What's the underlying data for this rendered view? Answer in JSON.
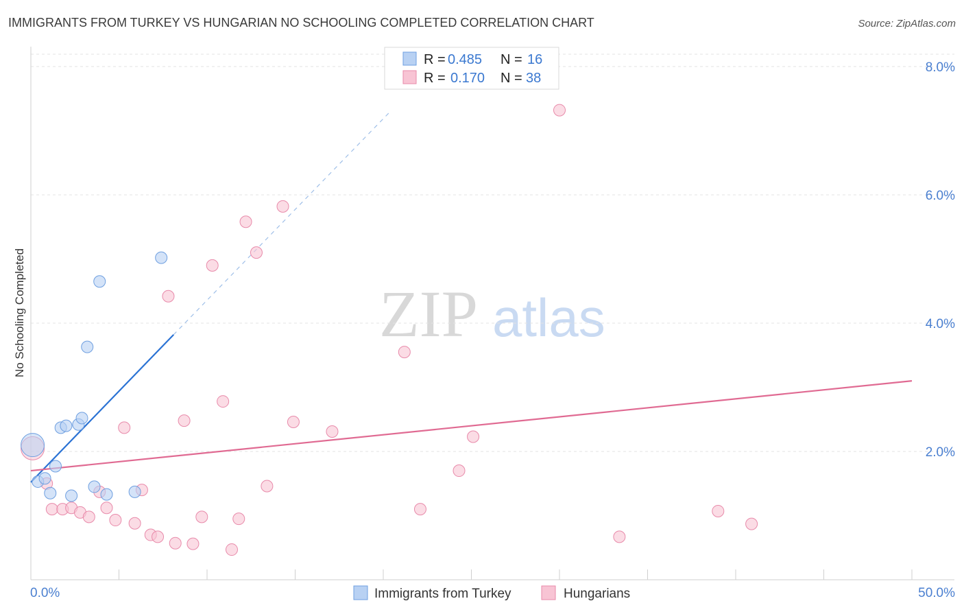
{
  "chart_data": {
    "type": "scatter",
    "title": "IMMIGRANTS FROM TURKEY VS HUNGARIAN NO SCHOOLING COMPLETED CORRELATION CHART",
    "source": "Source: ZipAtlas.com",
    "ylabel": "No Schooling Completed",
    "xlim": [
      0,
      50
    ],
    "ylim": [
      0,
      8.0
    ],
    "y_ticks": [
      {
        "value": 2.0,
        "label": "2.0%"
      },
      {
        "value": 4.0,
        "label": "4.0%"
      },
      {
        "value": 6.0,
        "label": "6.0%"
      },
      {
        "value": 8.0,
        "label": "8.0%"
      }
    ],
    "x_tick_labels": {
      "min": "0.0%",
      "max": "50.0%"
    },
    "grid": true,
    "watermark": {
      "zip": "ZIP",
      "atlas": "atlas"
    },
    "legend": [
      {
        "r_label": "R =",
        "r_value": "0.485",
        "n_label": "N =",
        "n_value": "16"
      },
      {
        "r_label": "R =",
        "r_value": "0.170",
        "n_label": "N =",
        "n_value": "38"
      }
    ],
    "series": [
      {
        "name": "Immigrants from Turkey",
        "color": "#6e9fe0",
        "fill": "#b8d1f3",
        "line_color": "#2a72d4",
        "trend": {
          "x_start": 0.0,
          "y_start": 1.52,
          "x_solid_end": 8.1,
          "y_solid_end": 3.82,
          "x_dash_end": 20.4,
          "y_dash_end": 7.3
        },
        "points": [
          {
            "x": 0.1,
            "y": 2.1,
            "big": true
          },
          {
            "x": 0.4,
            "y": 1.53
          },
          {
            "x": 0.8,
            "y": 1.58
          },
          {
            "x": 1.1,
            "y": 1.35
          },
          {
            "x": 1.4,
            "y": 1.77
          },
          {
            "x": 1.7,
            "y": 2.37
          },
          {
            "x": 2.0,
            "y": 2.4
          },
          {
            "x": 2.3,
            "y": 1.31
          },
          {
            "x": 2.7,
            "y": 2.42
          },
          {
            "x": 2.9,
            "y": 2.52
          },
          {
            "x": 3.2,
            "y": 3.63
          },
          {
            "x": 3.6,
            "y": 1.45
          },
          {
            "x": 3.9,
            "y": 4.65
          },
          {
            "x": 4.3,
            "y": 1.33
          },
          {
            "x": 5.9,
            "y": 1.37
          },
          {
            "x": 7.4,
            "y": 5.02
          }
        ]
      },
      {
        "name": "Hungarians",
        "color": "#e88aaa",
        "fill": "#f8c4d4",
        "line_color": "#e06a92",
        "trend": {
          "x_start": 0.0,
          "y_start": 1.7,
          "x_solid_end": 50.0,
          "y_solid_end": 3.1
        },
        "points": [
          {
            "x": 0.1,
            "y": 2.05,
            "big": true
          },
          {
            "x": 0.9,
            "y": 1.5
          },
          {
            "x": 1.2,
            "y": 1.1
          },
          {
            "x": 1.8,
            "y": 1.1
          },
          {
            "x": 2.3,
            "y": 1.12
          },
          {
            "x": 2.8,
            "y": 1.05
          },
          {
            "x": 3.3,
            "y": 0.98
          },
          {
            "x": 3.9,
            "y": 1.37
          },
          {
            "x": 4.3,
            "y": 1.12
          },
          {
            "x": 4.8,
            "y": 0.93
          },
          {
            "x": 5.3,
            "y": 2.37
          },
          {
            "x": 5.9,
            "y": 0.88
          },
          {
            "x": 6.3,
            "y": 1.4
          },
          {
            "x": 6.8,
            "y": 0.7
          },
          {
            "x": 7.2,
            "y": 0.67
          },
          {
            "x": 7.8,
            "y": 4.42
          },
          {
            "x": 8.2,
            "y": 0.57
          },
          {
            "x": 8.7,
            "y": 2.48
          },
          {
            "x": 9.2,
            "y": 0.56
          },
          {
            "x": 9.7,
            "y": 0.98
          },
          {
            "x": 10.3,
            "y": 4.9
          },
          {
            "x": 10.9,
            "y": 2.78
          },
          {
            "x": 11.4,
            "y": 0.47
          },
          {
            "x": 11.8,
            "y": 0.95
          },
          {
            "x": 12.2,
            "y": 5.58
          },
          {
            "x": 12.8,
            "y": 5.1
          },
          {
            "x": 13.4,
            "y": 1.46
          },
          {
            "x": 14.3,
            "y": 5.82
          },
          {
            "x": 14.9,
            "y": 2.46
          },
          {
            "x": 17.1,
            "y": 2.31
          },
          {
            "x": 21.2,
            "y": 3.55
          },
          {
            "x": 22.1,
            "y": 1.1
          },
          {
            "x": 24.3,
            "y": 1.7
          },
          {
            "x": 25.1,
            "y": 2.23
          },
          {
            "x": 30.0,
            "y": 7.32
          },
          {
            "x": 33.4,
            "y": 0.67
          },
          {
            "x": 39.0,
            "y": 1.07
          },
          {
            "x": 40.9,
            "y": 0.87
          }
        ]
      }
    ]
  }
}
